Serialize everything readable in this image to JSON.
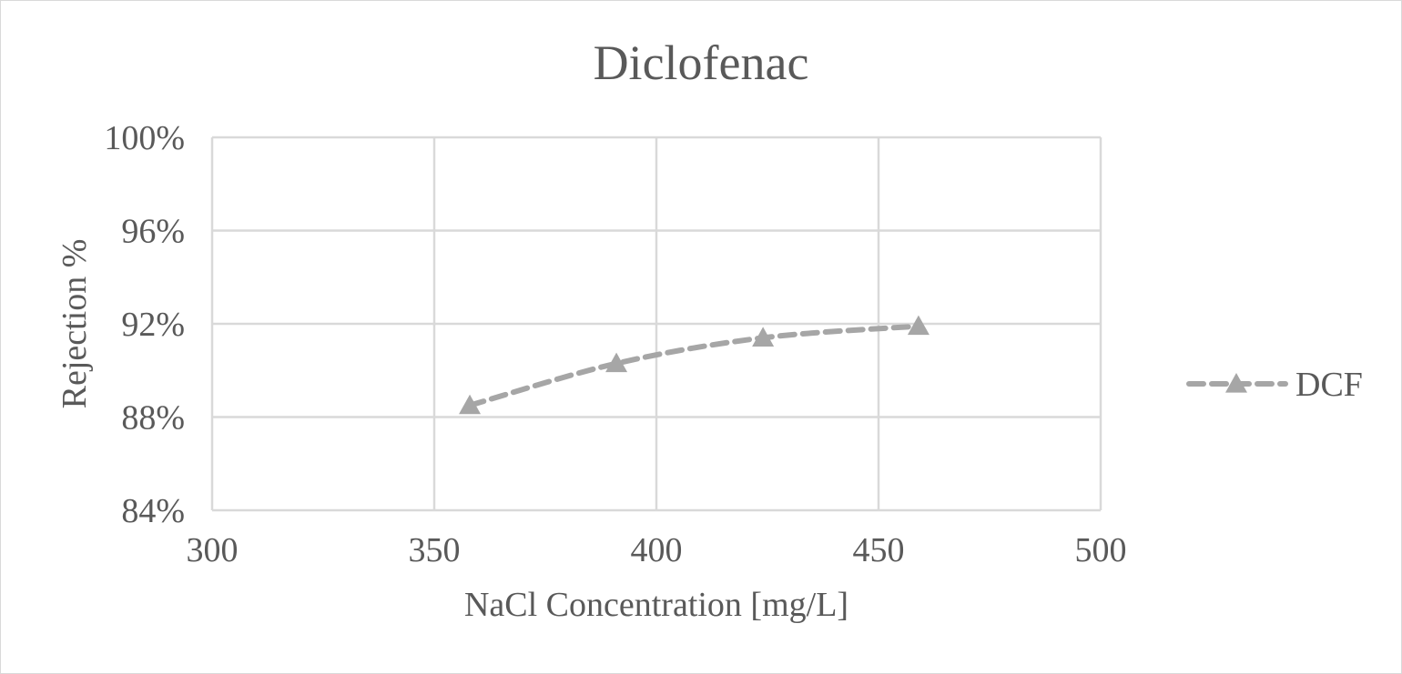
{
  "chart_data": {
    "type": "line",
    "title": "Diclofenac",
    "xlabel": "NaCl Concentration [mg/L]",
    "ylabel": "Rejection %",
    "xlim": [
      300,
      500
    ],
    "ylim": [
      0.84,
      1.0
    ],
    "x_ticks": [
      300,
      350,
      400,
      450,
      500
    ],
    "x_tick_labels": [
      "300",
      "350",
      "400",
      "450",
      "500"
    ],
    "y_ticks": [
      0.84,
      0.88,
      0.92,
      0.96,
      1.0
    ],
    "y_tick_labels": [
      "84%",
      "88%",
      "92%",
      "96%",
      "100%"
    ],
    "grid": true,
    "legend": "right",
    "series": [
      {
        "name": "DCF",
        "marker": "triangle",
        "line_style": "dashed-smooth",
        "color": "#a6a6a6",
        "x": [
          358,
          391,
          424,
          459
        ],
        "y": [
          0.885,
          0.903,
          0.914,
          0.919
        ]
      }
    ]
  }
}
